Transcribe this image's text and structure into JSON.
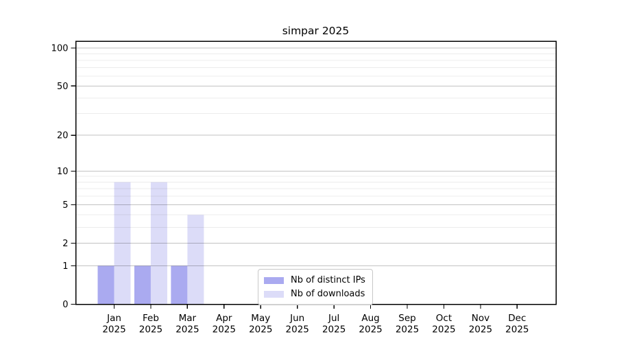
{
  "chart_data": {
    "type": "bar",
    "title": "simpar 2025",
    "categories": [
      "Jan",
      "Feb",
      "Mar",
      "Apr",
      "May",
      "Jun",
      "Jul",
      "Aug",
      "Sep",
      "Oct",
      "Nov",
      "Dec"
    ],
    "x_label_line2": "2025",
    "series": [
      {
        "name": "Nb of distinct IPs",
        "color": "#aaaaf0",
        "values": [
          1,
          1,
          1,
          0,
          0,
          0,
          0,
          0,
          0,
          0,
          0,
          0
        ]
      },
      {
        "name": "Nb of downloads",
        "color": "#dcdcf8",
        "values": [
          8,
          8,
          4,
          0,
          0,
          0,
          0,
          0,
          0,
          0,
          0,
          0
        ]
      }
    ],
    "yscale": "log1p",
    "ylim": [
      0,
      113
    ],
    "yticks": [
      0,
      1,
      2,
      5,
      10,
      20,
      50,
      100
    ],
    "minor_gridlines": [
      3,
      4,
      6,
      7,
      8,
      9,
      30,
      40,
      60,
      70,
      80,
      90
    ],
    "grid": true,
    "legend_position": "inside-bottom-center",
    "colors": {
      "axis": "#000000",
      "major_grid": "rgba(0,0,0,0.24)",
      "minor_grid": "rgba(0,0,0,0.075)",
      "background": "#ffffff"
    }
  }
}
